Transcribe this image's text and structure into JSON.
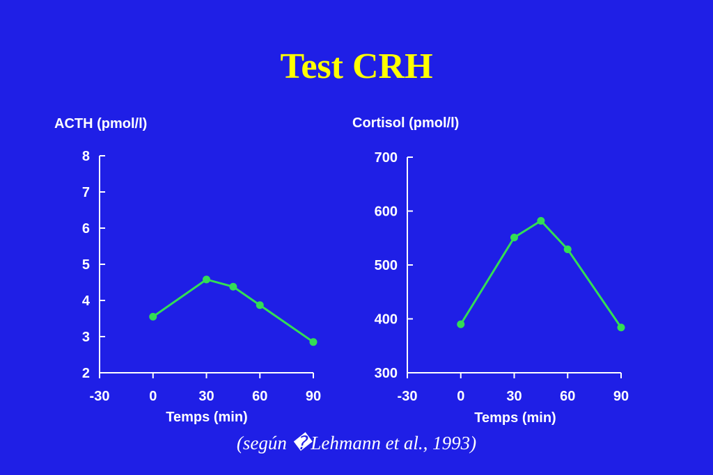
{
  "slide": {
    "title": "Test CRH",
    "citation": "(según �Lehmann et al., 1993)"
  },
  "colors": {
    "background": "#1f1fe6",
    "title": "#ffff00",
    "axis": "#ffffff",
    "series": "#33dd55"
  },
  "chart_data": [
    {
      "type": "line",
      "title": "",
      "ylabel": "ACTH (pmol/l)",
      "xlabel": "Temps (min)",
      "xlim": [
        -30,
        90
      ],
      "ylim": [
        2,
        8
      ],
      "x_ticks": [
        -30,
        0,
        30,
        60,
        90
      ],
      "y_ticks": [
        2,
        3,
        4,
        5,
        6,
        7,
        8
      ],
      "grid": false,
      "series": [
        {
          "x": [
            0,
            30,
            45,
            60,
            90
          ],
          "y": [
            3.55,
            4.58,
            4.38,
            3.87,
            2.85
          ]
        }
      ]
    },
    {
      "type": "line",
      "title": "",
      "ylabel": "Cortisol (pmol/l)",
      "xlabel": "Temps (min)",
      "xlim": [
        -30,
        90
      ],
      "ylim": [
        300,
        700
      ],
      "x_ticks": [
        -30,
        0,
        30,
        60,
        90
      ],
      "y_ticks": [
        300,
        400,
        500,
        600,
        700
      ],
      "grid": false,
      "series": [
        {
          "x": [
            0,
            30,
            45,
            60,
            90
          ],
          "y": [
            390,
            551,
            582,
            529,
            384
          ]
        }
      ]
    }
  ]
}
